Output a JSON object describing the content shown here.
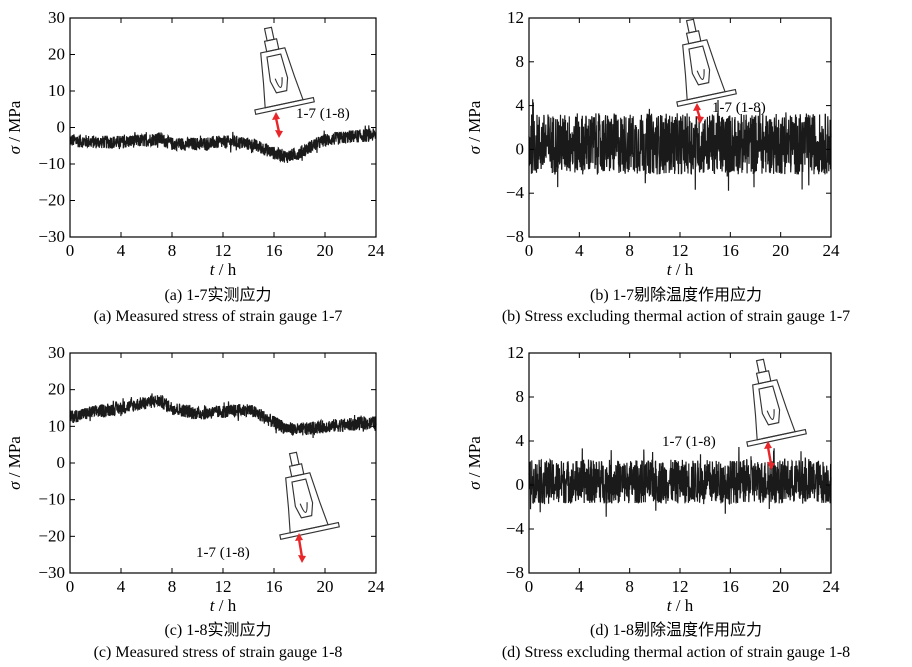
{
  "colors": {
    "signal": "#1a1a1a",
    "axis": "#000000",
    "arrow": "#e8272a",
    "sensor_stroke": "#333333"
  },
  "icons": {
    "sensor": "strain-gauge-sensor-icon",
    "arrow": "double-headed-red-arrow-icon"
  },
  "chart_data": [
    {
      "type": "line",
      "panel": "a",
      "caption_cn": "(a) 1-7实测应力",
      "caption_en": "(a) Measured stress of strain gauge 1-7",
      "xlabel_symbol": "t",
      "xlabel_unit": " / h",
      "ylabel_symbol": "σ",
      "ylabel_unit": " / MPa",
      "xlim": [
        0,
        24
      ],
      "ylim": [
        -30,
        30
      ],
      "xticks": [
        0,
        4,
        8,
        12,
        16,
        20,
        24
      ],
      "yticks": [
        -30,
        -20,
        -10,
        0,
        10,
        20,
        30
      ],
      "ytick_labels": [
        "−30",
        "−20",
        "−10",
        "0",
        "10",
        "20",
        "30"
      ],
      "annotation": "1-7 (1-8)",
      "noise_band": 1.8,
      "series": [
        {
          "x": [
            0,
            2,
            4,
            6,
            7,
            8,
            10,
            12,
            13,
            14,
            15,
            16,
            17,
            18,
            19,
            20,
            22,
            24
          ],
          "y": [
            -3.5,
            -4,
            -4,
            -3.5,
            -3,
            -4.5,
            -4.5,
            -4,
            -4,
            -4.5,
            -5.5,
            -7,
            -8,
            -7,
            -5,
            -3.5,
            -2.5,
            -2
          ]
        }
      ]
    },
    {
      "type": "line",
      "panel": "b",
      "caption_cn": "(b) 1-7剔除温度作用应力",
      "caption_en": "(b) Stress excluding thermal action of strain gauge 1-7",
      "xlabel_symbol": "t",
      "xlabel_unit": " / h",
      "ylabel_symbol": "σ",
      "ylabel_unit": " / MPa",
      "xlim": [
        0,
        24
      ],
      "ylim": [
        -8,
        12
      ],
      "xticks": [
        0,
        4,
        8,
        12,
        16,
        20,
        24
      ],
      "yticks": [
        -8,
        -4,
        0,
        4,
        8,
        12
      ],
      "ytick_labels": [
        "−8",
        "−4",
        "0",
        "4",
        "8",
        "12"
      ],
      "annotation": "1-7 (1-8)",
      "noise_band": 2.8,
      "series": [
        {
          "x": [
            0,
            24
          ],
          "y": [
            0.5,
            0.5
          ]
        }
      ]
    },
    {
      "type": "line",
      "panel": "c",
      "caption_cn": "(c) 1-8实测应力",
      "caption_en": "(c) Measured stress of strain gauge 1-8",
      "xlabel_symbol": "t",
      "xlabel_unit": " / h",
      "ylabel_symbol": "σ",
      "ylabel_unit": " / MPa",
      "xlim": [
        0,
        24
      ],
      "ylim": [
        -30,
        30
      ],
      "xticks": [
        0,
        4,
        8,
        12,
        16,
        20,
        24
      ],
      "yticks": [
        -30,
        -20,
        -10,
        0,
        10,
        20,
        30
      ],
      "ytick_labels": [
        "−30",
        "−20",
        "−10",
        "0",
        "10",
        "20",
        "30"
      ],
      "annotation": "1-7 (1-8)",
      "noise_band": 1.8,
      "series": [
        {
          "x": [
            0,
            2,
            4,
            6,
            7,
            8,
            10,
            12,
            14,
            15,
            16,
            17,
            18,
            19,
            20,
            22,
            24
          ],
          "y": [
            12.5,
            14,
            15,
            16.5,
            17,
            15,
            13.5,
            14,
            14.5,
            13,
            11,
            9.5,
            9,
            9.5,
            10,
            10.5,
            11
          ]
        }
      ]
    },
    {
      "type": "line",
      "panel": "d",
      "caption_cn": "(d) 1-8剔除温度作用应力",
      "caption_en": "(d) Stress excluding thermal action of strain gauge 1-8",
      "xlabel_symbol": "t",
      "xlabel_unit": " / h",
      "ylabel_symbol": "σ",
      "ylabel_unit": " / MPa",
      "xlim": [
        0,
        24
      ],
      "ylim": [
        -8,
        12
      ],
      "xticks": [
        0,
        4,
        8,
        12,
        16,
        20,
        24
      ],
      "yticks": [
        -8,
        -4,
        0,
        4,
        8,
        12
      ],
      "ytick_labels": [
        "−8",
        "−4",
        "0",
        "4",
        "8",
        "12"
      ],
      "annotation": "1-7 (1-8)",
      "noise_band": 2.0,
      "series": [
        {
          "x": [
            0,
            24
          ],
          "y": [
            0.3,
            0.3
          ]
        }
      ]
    }
  ]
}
